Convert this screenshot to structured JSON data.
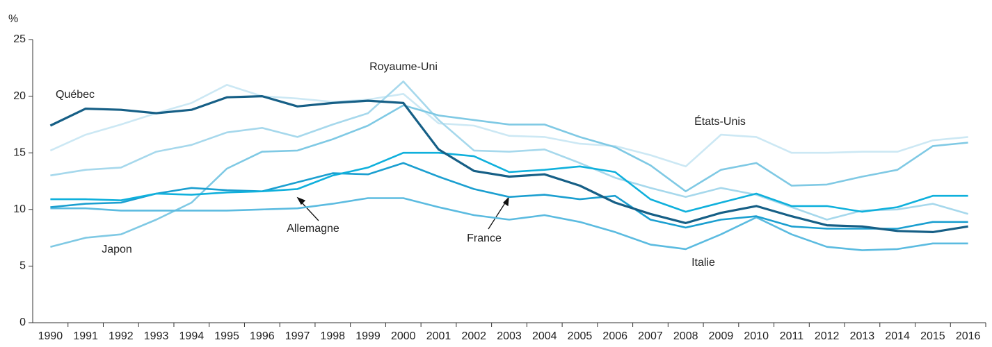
{
  "chart_data": {
    "type": "line",
    "y_label": "%",
    "categories": [
      "1990",
      "1991",
      "1992",
      "1993",
      "1994",
      "1995",
      "1996",
      "1997",
      "1998",
      "1999",
      "2000",
      "2001",
      "2002",
      "2003",
      "2004",
      "2005",
      "2006",
      "2007",
      "2008",
      "2009",
      "2010",
      "2011",
      "2012",
      "2013",
      "2014",
      "2015",
      "2016"
    ],
    "ylim": [
      0,
      25
    ],
    "yticks": [
      0,
      5,
      10,
      15,
      20,
      25
    ],
    "series": [
      {
        "name": "États-Unis",
        "color": "#cce8f4",
        "values": [
          15.2,
          16.6,
          17.5,
          18.5,
          19.4,
          21.0,
          20.0,
          19.8,
          19.5,
          19.7,
          20.2,
          17.6,
          17.4,
          16.5,
          16.4,
          15.8,
          15.6,
          14.8,
          13.8,
          16.6,
          16.4,
          15.0,
          15.0,
          15.1,
          15.1,
          16.1,
          16.4
        ]
      },
      {
        "name": "Royaume-Uni",
        "color": "#a6d8ec",
        "values": [
          13.0,
          13.5,
          13.7,
          15.1,
          15.7,
          16.8,
          17.2,
          16.4,
          17.5,
          18.5,
          21.3,
          17.9,
          15.2,
          15.1,
          15.3,
          14.1,
          12.8,
          11.9,
          11.1,
          11.9,
          11.3,
          10.2,
          9.1,
          9.9,
          10.0,
          10.5,
          9.6
        ]
      },
      {
        "name": "Japon",
        "color": "#7fc9e4",
        "values": [
          6.7,
          7.5,
          7.8,
          9.1,
          10.6,
          13.6,
          15.1,
          15.2,
          16.2,
          17.4,
          19.2,
          18.3,
          17.9,
          17.5,
          17.5,
          16.4,
          15.5,
          13.9,
          11.6,
          13.5,
          14.1,
          12.1,
          12.2,
          12.9,
          13.5,
          15.6,
          15.9
        ]
      },
      {
        "name": "Italie",
        "color": "#5bbbe0",
        "values": [
          10.1,
          10.1,
          9.9,
          9.9,
          9.9,
          9.9,
          10.0,
          10.1,
          10.5,
          11.0,
          11.0,
          10.2,
          9.5,
          9.1,
          9.5,
          8.9,
          8.0,
          6.9,
          6.5,
          7.8,
          9.3,
          7.8,
          6.7,
          6.4,
          6.5,
          7.0,
          7.0
        ]
      },
      {
        "name": "France",
        "color": "#1b9fd0",
        "values": [
          10.2,
          10.5,
          10.6,
          11.4,
          11.9,
          11.7,
          11.6,
          12.4,
          13.2,
          13.1,
          14.1,
          12.9,
          11.8,
          11.1,
          11.3,
          10.9,
          11.2,
          9.1,
          8.4,
          9.1,
          9.4,
          8.5,
          8.3,
          8.3,
          8.3,
          8.9,
          8.9
        ]
      },
      {
        "name": "Allemagne",
        "color": "#0fb0dc",
        "values": [
          10.9,
          10.9,
          10.8,
          11.4,
          11.3,
          11.5,
          11.6,
          11.8,
          13.0,
          13.7,
          15.0,
          15.0,
          14.7,
          13.3,
          13.5,
          13.8,
          13.3,
          10.9,
          9.8,
          10.6,
          11.4,
          10.3,
          10.3,
          9.8,
          10.2,
          11.2,
          11.2
        ]
      },
      {
        "name": "Québec",
        "color": "#165f86",
        "values": [
          17.4,
          18.9,
          18.8,
          18.5,
          18.8,
          19.9,
          20.0,
          19.1,
          19.4,
          19.6,
          19.4,
          15.3,
          13.4,
          12.9,
          13.1,
          12.1,
          10.6,
          9.6,
          8.8,
          9.7,
          10.3,
          9.4,
          8.6,
          8.5,
          8.1,
          8.0,
          8.5
        ]
      }
    ]
  }
}
